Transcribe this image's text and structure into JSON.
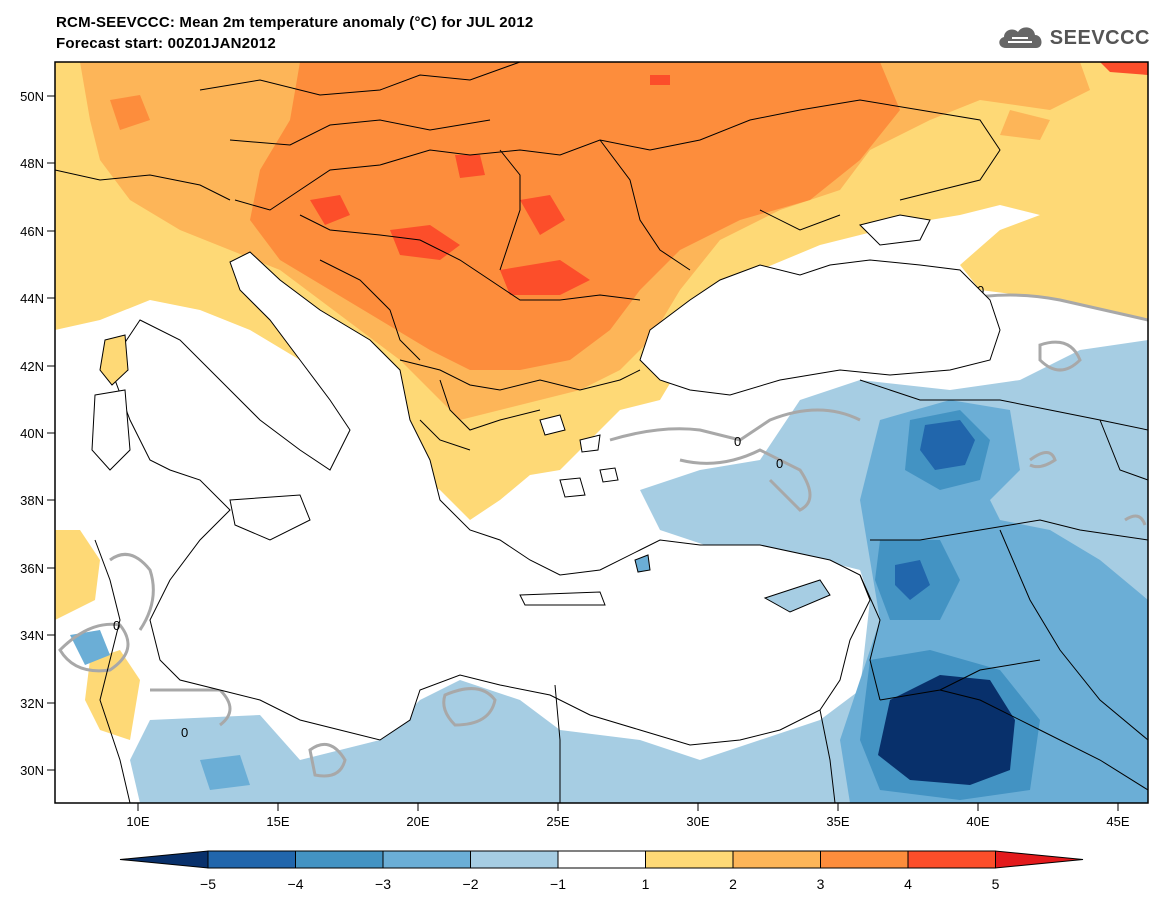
{
  "header": {
    "title_line1": "RCM-SEEVCCC: Mean 2m temperature anomaly (°C) for JUL 2012",
    "title_line2": "Forecast start: 00Z01JAN2012"
  },
  "logo": {
    "icon": "cloud-icon",
    "text": "SEEVCCC"
  },
  "map": {
    "lon_range": [
      7,
      46
    ],
    "lat_range": [
      29,
      51
    ],
    "lon_ticks": [
      "10E",
      "15E",
      "20E",
      "25E",
      "30E",
      "35E",
      "40E",
      "45E"
    ],
    "lat_ticks": [
      "50N",
      "48N",
      "46N",
      "44N",
      "42N",
      "40N",
      "38N",
      "36N",
      "34N",
      "32N",
      "30N"
    ],
    "contour_label": "0"
  },
  "colorbar": {
    "levels": [
      "−5",
      "−4",
      "−3",
      "−2",
      "−1",
      "1",
      "2",
      "3",
      "4",
      "5"
    ],
    "colors": [
      "#08306b",
      "#2166ac",
      "#4393c3",
      "#6baed6",
      "#a6cde3",
      "#ffffff",
      "#fed976",
      "#fdb558",
      "#fd8d3c",
      "#fc4e2a",
      "#e31a1c"
    ]
  }
}
